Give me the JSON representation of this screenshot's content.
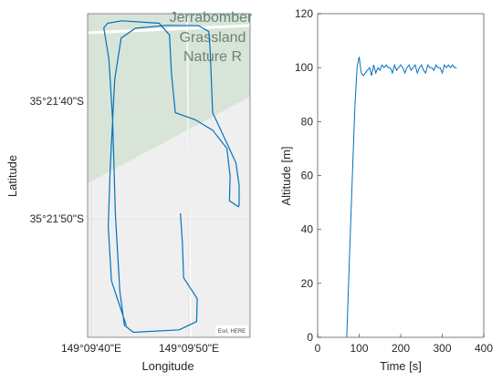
{
  "chart_data": [
    {
      "type": "map",
      "xlabel": "Longitude",
      "ylabel": "Latitude",
      "x_tick_labels": [
        "149°09'40\"E",
        "149°09'50\"E"
      ],
      "y_tick_labels": [
        "35°21'40\"S",
        "35°21'50\"S"
      ],
      "map_labels": [
        "Jerrabomber",
        "Grassland",
        "Nature R"
      ],
      "attribution": "Esri, HERE",
      "track_color": "#0072BD",
      "basemap_color": "#efefef",
      "reserve_color": "#d8e4d8",
      "track": [
        [
          149.16148,
          -35.3577
        ],
        [
          149.16125,
          -35.35662
        ],
        [
          149.1612,
          -35.35532
        ],
        [
          149.16123,
          -35.35393
        ],
        [
          149.16127,
          -35.35273
        ],
        [
          149.1613,
          -35.35178
        ],
        [
          149.1614,
          -35.35079
        ],
        [
          149.16162,
          -35.35055
        ],
        [
          149.1621,
          -35.35048
        ],
        [
          149.1626,
          -35.35049
        ],
        [
          149.16276,
          -35.35063
        ],
        [
          149.16278,
          -35.35107
        ],
        [
          149.16282,
          -35.35258
        ],
        [
          149.16303,
          -35.35328
        ],
        [
          149.16318,
          -35.35379
        ],
        [
          149.16323,
          -35.35433
        ],
        [
          149.16323,
          -35.35479
        ],
        [
          149.16322,
          -35.35484
        ],
        [
          149.16308,
          -35.3547
        ],
        [
          149.16309,
          -35.3541
        ],
        [
          149.16304,
          -35.35344
        ],
        [
          149.16282,
          -35.353
        ],
        [
          149.16255,
          -35.35275
        ],
        [
          149.16224,
          -35.35258
        ],
        [
          149.16218,
          -35.35163
        ],
        [
          149.16215,
          -35.35071
        ],
        [
          149.16199,
          -35.35043
        ],
        [
          149.16141,
          -35.35037
        ],
        [
          149.16119,
          -35.35043
        ],
        [
          149.16113,
          -35.35054
        ],
        [
          149.16121,
          -35.35129
        ],
        [
          149.16127,
          -35.3528
        ],
        [
          149.16131,
          -35.35502
        ],
        [
          149.16138,
          -35.35687
        ],
        [
          149.16145,
          -35.35769
        ],
        [
          149.16159,
          -35.35786
        ],
        [
          149.1623,
          -35.3578
        ],
        [
          149.16257,
          -35.3576
        ],
        [
          149.16258,
          -35.35705
        ],
        [
          149.16237,
          -35.35655
        ],
        [
          149.16235,
          -35.3557
        ],
        [
          149.16232,
          -35.355
        ]
      ],
      "xlim": [
        149.16088,
        149.1634
      ],
      "ylim": [
        -35.35798,
        -35.3502
      ]
    },
    {
      "type": "line",
      "xlabel": "Time [s]",
      "ylabel": "Altitude [m]",
      "xlim": [
        0,
        400
      ],
      "ylim": [
        0,
        120
      ],
      "xticks": [
        0,
        100,
        200,
        300,
        400
      ],
      "yticks": [
        0,
        20,
        40,
        60,
        80,
        100,
        120
      ],
      "color": "#0072BD",
      "x": [
        70,
        75,
        80,
        85,
        90,
        95,
        100,
        105,
        110,
        115,
        120,
        125,
        130,
        135,
        140,
        145,
        150,
        155,
        160,
        165,
        170,
        175,
        180,
        185,
        190,
        195,
        200,
        205,
        210,
        215,
        220,
        225,
        230,
        235,
        240,
        245,
        250,
        255,
        260,
        265,
        270,
        275,
        280,
        285,
        290,
        295,
        300,
        305,
        310,
        315,
        320,
        325,
        330,
        335
      ],
      "y": [
        0,
        22,
        44,
        66,
        86,
        100,
        104,
        98,
        97,
        98,
        99,
        100,
        97,
        101,
        98,
        100,
        99,
        101,
        100,
        101,
        100,
        100,
        98,
        101,
        99,
        100,
        101,
        100,
        98,
        100,
        101,
        99,
        100,
        101,
        98,
        100,
        101,
        99,
        98,
        101,
        100,
        100,
        99,
        101,
        100,
        100,
        98,
        101,
        100,
        101,
        100,
        101,
        100,
        100
      ]
    }
  ]
}
